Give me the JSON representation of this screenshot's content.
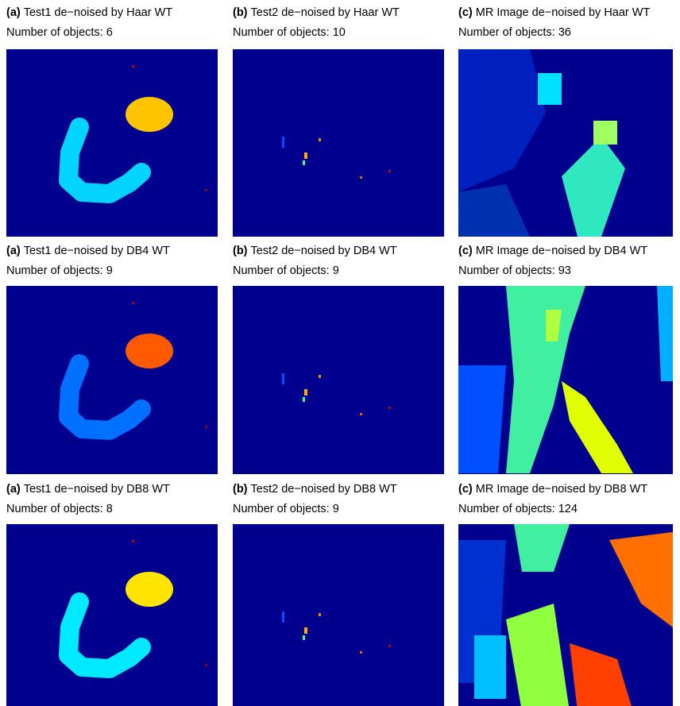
{
  "panels": [
    {
      "label": "(a)",
      "title": "Test1 de−noised by Haar WT",
      "count": "Number of objects: 6"
    },
    {
      "label": "(b)",
      "title": "Test2 de−noised by Haar WT",
      "count": "Number of objects: 10"
    },
    {
      "label": "(c)",
      "title": "MR Image de−noised by Haar WT",
      "count": "Number of objects: 36"
    },
    {
      "label": "(a)",
      "title": "Test1 de−noised by DB4 WT",
      "count": "Number of objects: 9"
    },
    {
      "label": "(b)",
      "title": "Test2 de−noised by DB4 WT",
      "count": "Number of objects: 9"
    },
    {
      "label": "(c)",
      "title": "MR Image de−noised by DB4 WT",
      "count": "Number of objects: 93"
    },
    {
      "label": "(a)",
      "title": "Test1 de−noised by DB8 WT",
      "count": "Number of objects: 8"
    },
    {
      "label": "(b)",
      "title": "Test2 de−noised by DB8 WT",
      "count": "Number of objects: 9"
    },
    {
      "label": "(c)",
      "title": "MR Image de−noised by DB8 WT",
      "count": "Number of objects: 124"
    }
  ]
}
